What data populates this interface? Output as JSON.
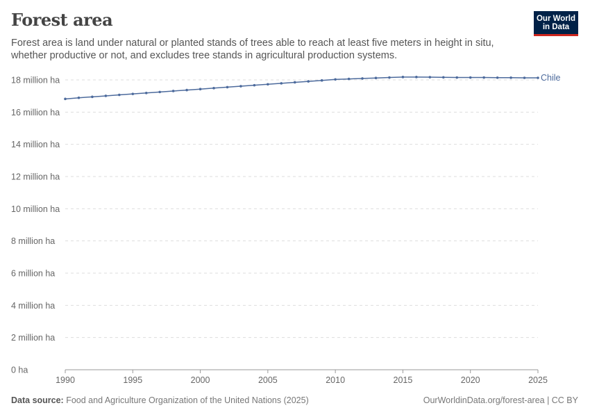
{
  "header": {
    "title": "Forest area",
    "subtitle": "Forest area is land under natural or planted stands of trees able to reach at least five meters in height in situ, whether productive or not, and excludes tree stands in agricultural production systems.",
    "logo_line1": "Our World",
    "logo_line2": "in Data"
  },
  "footer": {
    "source_label": "Data source:",
    "source_text": "Food and Agriculture Organization of the United Nations (2025)",
    "url_license": "OurWorldinData.org/forest-area | CC BY"
  },
  "colors": {
    "series": "#4c6a9c",
    "grid": "#dddddd",
    "axis": "#999999",
    "logo_bg": "#002147",
    "logo_accent": "#ce261e"
  },
  "chart_data": {
    "type": "line",
    "title": "Forest area",
    "xlim": [
      1990,
      2025
    ],
    "ylim": [
      0,
      18000000
    ],
    "x_ticks": [
      1990,
      1995,
      2000,
      2005,
      2010,
      2015,
      2020,
      2025
    ],
    "y_ticks": [
      0,
      2000000,
      4000000,
      6000000,
      8000000,
      10000000,
      12000000,
      14000000,
      16000000,
      18000000
    ],
    "y_tick_labels": [
      "0 ha",
      "2 million ha",
      "4 million ha",
      "6 million ha",
      "8 million ha",
      "10 million ha",
      "12 million ha",
      "14 million ha",
      "16 million ha",
      "18 million ha"
    ],
    "grid": "horizontal-dashed",
    "series": [
      {
        "name": "Chile",
        "x": [
          1990,
          1991,
          1992,
          1993,
          1994,
          1995,
          1996,
          1997,
          1998,
          1999,
          2000,
          2001,
          2002,
          2003,
          2004,
          2005,
          2006,
          2007,
          2008,
          2009,
          2010,
          2011,
          2012,
          2013,
          2014,
          2015,
          2016,
          2017,
          2018,
          2019,
          2020,
          2021,
          2022,
          2023,
          2024,
          2025
        ],
        "values": [
          16820000,
          16890000,
          16950000,
          17010000,
          17070000,
          17130000,
          17190000,
          17250000,
          17310000,
          17370000,
          17430000,
          17490000,
          17550000,
          17610000,
          17670000,
          17730000,
          17790000,
          17850000,
          17910000,
          17970000,
          18030000,
          18060000,
          18090000,
          18120000,
          18150000,
          18180000,
          18180000,
          18170000,
          18160000,
          18150000,
          18150000,
          18150000,
          18140000,
          18140000,
          18130000,
          18130000
        ]
      }
    ]
  }
}
